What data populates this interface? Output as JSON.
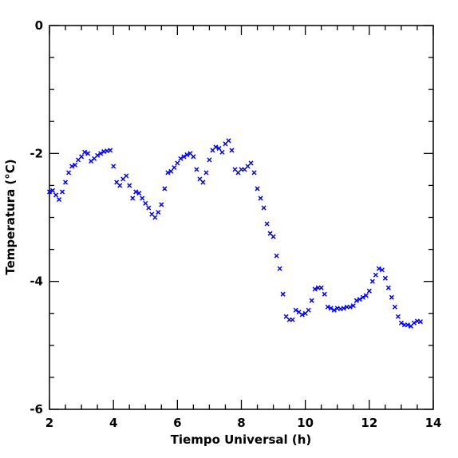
{
  "chart_data": {
    "type": "scatter",
    "xlabel": "Tiempo Universal (h)",
    "ylabel": "Temperatura (°C)",
    "xlim": [
      2,
      14
    ],
    "ylim": [
      -6,
      0
    ],
    "xticks": [
      2,
      4,
      6,
      8,
      10,
      12,
      14
    ],
    "yticks": [
      -6,
      -4,
      -2,
      0
    ],
    "xminorticks": [
      2.5,
      3,
      3.5,
      4.5,
      5,
      5.5,
      6.5,
      7,
      7.5,
      8.5,
      9,
      9.5,
      10.5,
      11,
      11.5,
      12.5,
      13,
      13.5
    ],
    "yminorticks": [
      -5.5,
      -5,
      -4.5,
      -3.5,
      -3,
      -2.5,
      -1.5,
      -1,
      -0.5
    ],
    "marker": "x",
    "color": "#0000ff",
    "x": [
      2.0,
      2.1,
      2.2,
      2.3,
      2.4,
      2.5,
      2.6,
      2.7,
      2.8,
      2.9,
      3.0,
      3.1,
      3.2,
      3.3,
      3.4,
      3.5,
      3.6,
      3.7,
      3.8,
      3.9,
      4.0,
      4.1,
      4.2,
      4.3,
      4.4,
      4.5,
      4.6,
      4.7,
      4.8,
      4.9,
      5.0,
      5.1,
      5.2,
      5.3,
      5.4,
      5.5,
      5.6,
      5.7,
      5.8,
      5.9,
      6.0,
      6.1,
      6.2,
      6.3,
      6.4,
      6.5,
      6.6,
      6.7,
      6.8,
      6.9,
      7.0,
      7.1,
      7.2,
      7.3,
      7.4,
      7.5,
      7.6,
      7.7,
      7.8,
      7.9,
      8.0,
      8.1,
      8.2,
      8.3,
      8.4,
      8.5,
      8.6,
      8.7,
      8.8,
      8.9,
      9.0,
      9.1,
      9.2,
      9.3,
      9.4,
      9.5,
      9.6,
      9.7,
      9.8,
      9.9,
      10.0,
      10.1,
      10.2,
      10.3,
      10.4,
      10.5,
      10.6,
      10.7,
      10.8,
      10.9,
      11.0,
      11.1,
      11.2,
      11.3,
      11.4,
      11.5,
      11.6,
      11.7,
      11.8,
      11.9,
      12.0,
      12.1,
      12.2,
      12.3,
      12.4,
      12.5,
      12.6,
      12.7,
      12.8,
      12.9,
      13.0,
      13.1,
      13.2,
      13.3,
      13.4,
      13.5,
      13.6
    ],
    "values": [
      -2.6,
      -2.58,
      -2.65,
      -2.72,
      -2.6,
      -2.45,
      -2.3,
      -2.2,
      -2.18,
      -2.1,
      -2.05,
      -1.98,
      -2.0,
      -2.12,
      -2.08,
      -2.03,
      -2.0,
      -1.97,
      -1.96,
      -1.95,
      -2.2,
      -2.45,
      -2.5,
      -2.4,
      -2.35,
      -2.5,
      -2.7,
      -2.6,
      -2.62,
      -2.7,
      -2.78,
      -2.85,
      -2.95,
      -3.0,
      -2.92,
      -2.8,
      -2.55,
      -2.3,
      -2.28,
      -2.22,
      -2.15,
      -2.08,
      -2.05,
      -2.02,
      -2.0,
      -2.05,
      -2.25,
      -2.4,
      -2.45,
      -2.3,
      -2.1,
      -1.95,
      -1.9,
      -1.92,
      -1.98,
      -1.85,
      -1.8,
      -1.95,
      -2.25,
      -2.3,
      -2.25,
      -2.25,
      -2.2,
      -2.15,
      -2.3,
      -2.55,
      -2.7,
      -2.85,
      -3.1,
      -3.25,
      -3.3,
      -3.6,
      -3.8,
      -4.2,
      -4.55,
      -4.6,
      -4.6,
      -4.45,
      -4.48,
      -4.52,
      -4.5,
      -4.45,
      -4.3,
      -4.12,
      -4.1,
      -4.1,
      -4.2,
      -4.4,
      -4.42,
      -4.45,
      -4.42,
      -4.43,
      -4.42,
      -4.4,
      -4.4,
      -4.38,
      -4.3,
      -4.28,
      -4.25,
      -4.22,
      -4.15,
      -4.0,
      -3.9,
      -3.8,
      -3.82,
      -3.95,
      -4.1,
      -4.25,
      -4.4,
      -4.55,
      -4.65,
      -4.68,
      -4.68,
      -4.7,
      -4.65,
      -4.62,
      -4.63
    ]
  }
}
